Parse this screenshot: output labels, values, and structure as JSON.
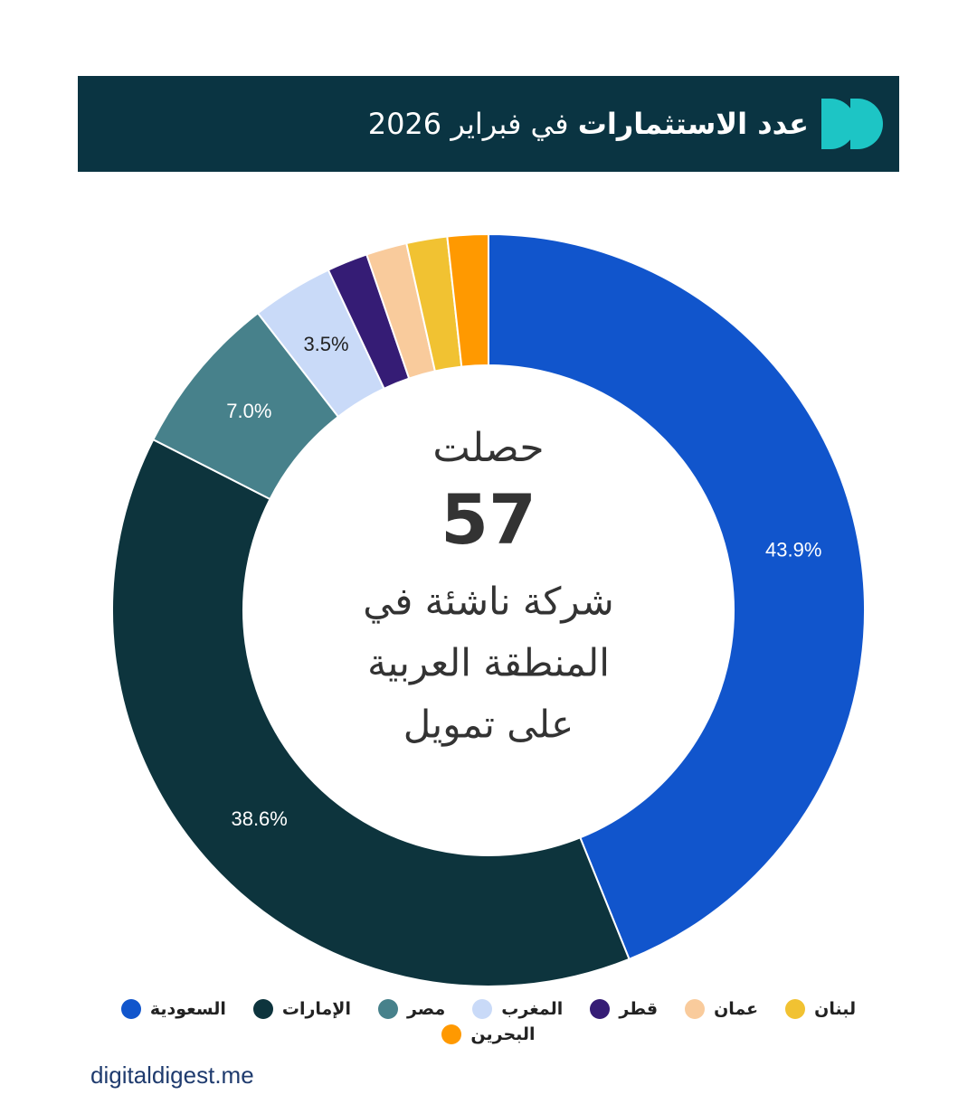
{
  "header": {
    "title_bold": "عدد الاستثمارات",
    "title_rest": "في فبراير 2026"
  },
  "chart_data": {
    "type": "donut",
    "center_text": {
      "line1": "حصلت",
      "number": "57",
      "line2": "شركة ناشئة في",
      "line3": "المنطقة العربية",
      "line4": "على تمويل"
    },
    "categories": [
      "السعودية",
      "الإمارات",
      "مصر",
      "المغرب",
      "قطر",
      "عمان",
      "لبنان",
      "البحرين"
    ],
    "values": [
      43.9,
      38.6,
      7.0,
      3.5,
      1.75,
      1.75,
      1.75,
      1.75
    ],
    "value_labels": [
      "43.9%",
      "38.6%",
      "7.0%",
      "3.5%",
      null,
      null,
      null,
      null
    ],
    "colors": [
      "#1155cc",
      "#0d343d",
      "#47818b",
      "#c9daf8",
      "#351c75",
      "#f9cb9c",
      "#f1c232",
      "#ff9900"
    ]
  },
  "footer": {
    "source": "digitaldigest.me"
  }
}
